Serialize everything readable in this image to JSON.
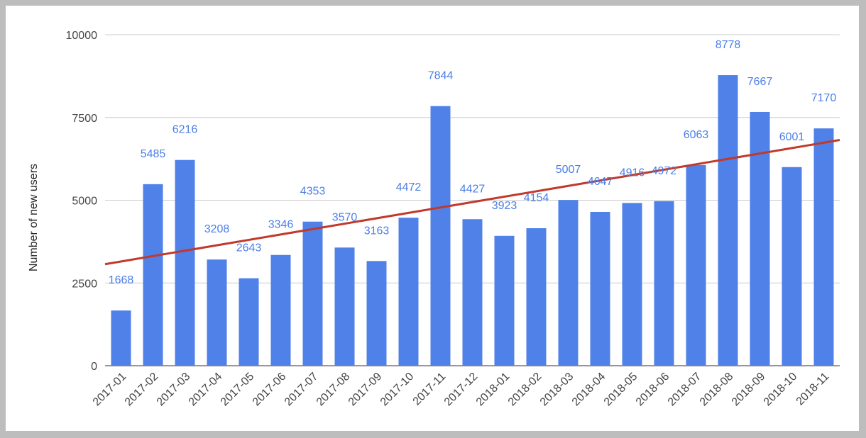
{
  "chart_data": {
    "type": "bar",
    "title": "",
    "xlabel": "",
    "ylabel": "Number of new users",
    "ylim": [
      0,
      10000
    ],
    "yticks": [
      0,
      2500,
      5000,
      7500,
      10000
    ],
    "grid": true,
    "categories": [
      "2017-01",
      "2017-02",
      "2017-03",
      "2017-04",
      "2017-05",
      "2017-06",
      "2017-07",
      "2017-08",
      "2017-09",
      "2017-10",
      "2017-11",
      "2017-12",
      "2018-01",
      "2018-02",
      "2018-03",
      "2018-04",
      "2018-05",
      "2018-06",
      "2018-07",
      "2018-08",
      "2018-09",
      "2018-10",
      "2018-11"
    ],
    "values": [
      1668,
      5485,
      6216,
      3208,
      2643,
      3346,
      4353,
      3570,
      3163,
      4472,
      7844,
      4427,
      3923,
      4154,
      5007,
      4647,
      4916,
      4972,
      6063,
      8778,
      7667,
      6001,
      7170
    ],
    "trendline": {
      "type": "linear",
      "color": "#c0392b"
    },
    "bar_color": "#4f81e9",
    "label_color": "#4a7ee8"
  }
}
